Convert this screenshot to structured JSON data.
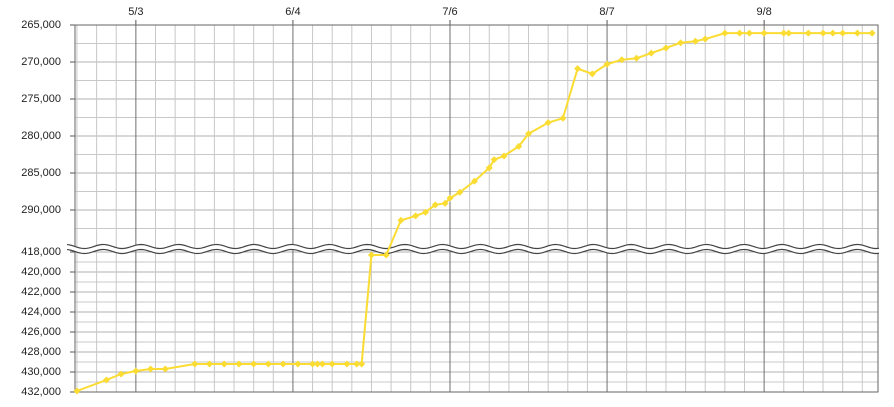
{
  "chart_data": {
    "type": "line",
    "color": "#fadc32",
    "grid": true,
    "x": [
      -12,
      -6,
      -3,
      0,
      3,
      6,
      12,
      15,
      18,
      21,
      24,
      27,
      30,
      33,
      36,
      37,
      38,
      40,
      43,
      45,
      46,
      48,
      51,
      54,
      57,
      59,
      61,
      63,
      64,
      66,
      69,
      72,
      73,
      75,
      78,
      80,
      84,
      87,
      90,
      93,
      96,
      99,
      102,
      105,
      108,
      111,
      114,
      116,
      120,
      123,
      125,
      128,
      132,
      133,
      137,
      140,
      142,
      144,
      147,
      150
    ],
    "values": [
      431900,
      430800,
      430200,
      429900,
      429700,
      429700,
      429200,
      429200,
      429200,
      429200,
      429200,
      429200,
      429200,
      429200,
      429200,
      429200,
      429200,
      429200,
      429200,
      429200,
      429200,
      418300,
      418300,
      291400,
      290800,
      290300,
      289300,
      289100,
      288400,
      287600,
      286100,
      284300,
      283200,
      282700,
      281400,
      279700,
      278200,
      277600,
      270900,
      271600,
      270300,
      269700,
      269500,
      268800,
      268100,
      267400,
      267200,
      266900,
      266100,
      266100,
      266100,
      266100,
      266100,
      266100,
      266100,
      266100,
      266100,
      266100,
      266100,
      266100
    ],
    "xlim": [
      -12.4,
      151.2
    ],
    "xticks": [
      {
        "value": 0,
        "label": "5/3"
      },
      {
        "value": 32,
        "label": "6/4"
      },
      {
        "value": 64,
        "label": "7/6"
      },
      {
        "value": 96,
        "label": "8/7"
      },
      {
        "value": 128,
        "label": "9/8"
      }
    ],
    "minor_xticks": [
      -12,
      -8,
      -4,
      4,
      8,
      12,
      16,
      20,
      24,
      28,
      36,
      40,
      44,
      48,
      52,
      56,
      60,
      68,
      72,
      76,
      80,
      84,
      88,
      92,
      100,
      104,
      108,
      112,
      116,
      120,
      124,
      132,
      136,
      140,
      144,
      148
    ],
    "y_segments": [
      {
        "ylim": [
          265000,
          295000
        ],
        "yticks": [
          {
            "value": 265000,
            "label": "265,000"
          },
          {
            "value": 270000,
            "label": "270,000"
          },
          {
            "value": 275000,
            "label": "275,000"
          },
          {
            "value": 280000,
            "label": "280,000"
          },
          {
            "value": 285000,
            "label": "285,000"
          },
          {
            "value": 290000,
            "label": "290,000"
          }
        ],
        "minor_yticks": [
          267500,
          272500,
          277500,
          282500,
          287500,
          292500
        ]
      },
      {
        "ylim": [
          418000,
          432000
        ],
        "yticks": [
          {
            "value": 418000,
            "label": "418,000"
          },
          {
            "value": 420000,
            "label": "420,000"
          },
          {
            "value": 422000,
            "label": "422,000"
          },
          {
            "value": 424000,
            "label": "424,000"
          },
          {
            "value": 426000,
            "label": "426,000"
          },
          {
            "value": 428000,
            "label": "428,000"
          },
          {
            "value": 430000,
            "label": "430,000"
          },
          {
            "value": 432000,
            "label": "432,000"
          }
        ],
        "minor_yticks": [
          419000,
          421000,
          423000,
          425000,
          427000,
          429000,
          431000
        ]
      }
    ]
  }
}
